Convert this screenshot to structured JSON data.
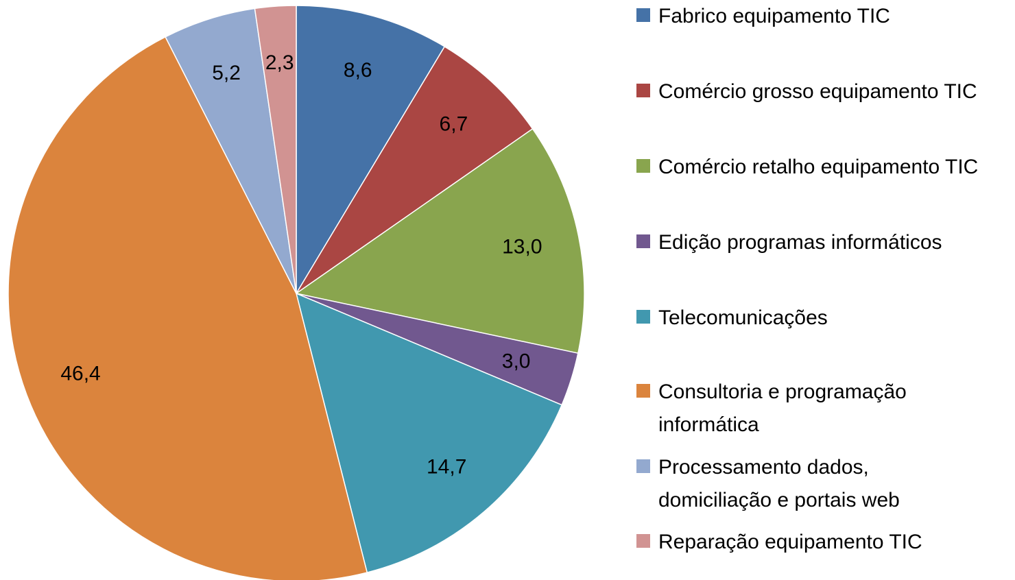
{
  "chart_data": {
    "type": "pie",
    "categories": [
      "Fabrico equipamento TIC",
      "Comércio grosso equipamento TIC",
      "Comércio retalho equipamento TIC",
      "Edição programas informáticos",
      "Telecomunicações",
      "Consultoria e programação informática",
      "Processamento dados, domiciliação e portais web",
      "Reparação equipamento TIC"
    ],
    "values": [
      8.6,
      6.7,
      13.0,
      3.0,
      14.7,
      46.4,
      5.2,
      2.3
    ],
    "value_labels": [
      "8,6",
      "6,7",
      "13,0",
      "3,0",
      "14,7",
      "46,4",
      "5,2",
      "2,3"
    ],
    "colors": [
      "#4572a7",
      "#aa4643",
      "#89a54e",
      "#71588f",
      "#4198af",
      "#db843d",
      "#93a9cf",
      "#d19392"
    ],
    "legend": "right"
  }
}
